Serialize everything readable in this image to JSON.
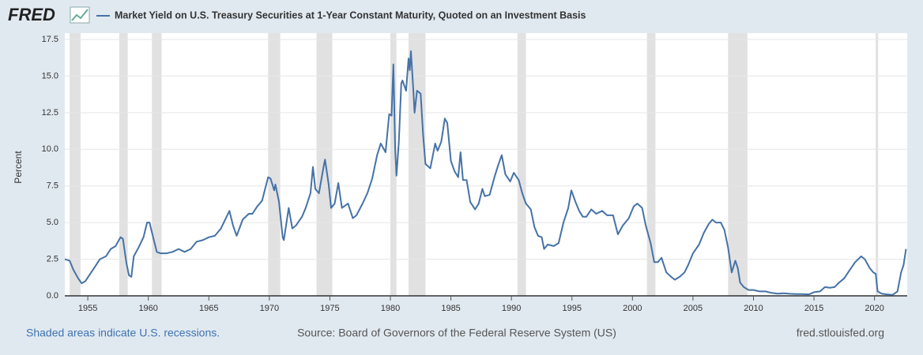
{
  "chart_data": {
    "type": "line",
    "logo": "FRED",
    "y_label": "Percent",
    "note": "Shaded areas indicate U.S. recessions.",
    "source": "Source: Board of Governors of the Federal Reserve System (US)",
    "site": "fred.stlouisfed.org",
    "xlim": [
      1953.1,
      2022.7
    ],
    "xticks": [
      1955,
      1960,
      1965,
      1970,
      1975,
      1980,
      1985,
      1990,
      1995,
      2000,
      2005,
      2010,
      2015,
      2020
    ],
    "ylim": [
      0,
      17.5
    ],
    "yticks": [
      {
        "value": 0,
        "label": "0.0"
      },
      2.5,
      {
        "value": 5,
        "label": "5.0"
      },
      7.5,
      {
        "value": 10,
        "label": "10.0"
      },
      12.5,
      {
        "value": 15,
        "label": "15.0"
      },
      17.5
    ],
    "grid": true,
    "recession_color": "#e1e1e1",
    "recessions": [
      [
        1953.5,
        1954.4
      ],
      [
        1957.6,
        1958.3
      ],
      [
        1960.3,
        1961.1
      ],
      [
        1969.9,
        1970.9
      ],
      [
        1973.9,
        1975.2
      ],
      [
        1980.0,
        1980.5
      ],
      [
        1981.5,
        1982.9
      ],
      [
        1990.5,
        1991.2
      ],
      [
        2001.2,
        2001.9
      ],
      [
        2007.9,
        2009.5
      ],
      [
        2020.1,
        2020.3
      ]
    ],
    "x": [
      1953.1,
      1953.5,
      1953.8,
      1954.2,
      1954.5,
      1954.8,
      1955.2,
      1955.6,
      1956,
      1956.5,
      1956.9,
      1957.3,
      1957.7,
      1957.9,
      1958.2,
      1958.4,
      1958.6,
      1958.8,
      1959.2,
      1959.6,
      1959.9,
      1960.1,
      1960.4,
      1960.7,
      1961,
      1961.5,
      1962,
      1962.5,
      1963,
      1963.5,
      1964,
      1964.5,
      1965,
      1965.5,
      1966,
      1966.7,
      1967,
      1967.3,
      1967.8,
      1968.3,
      1968.6,
      1969,
      1969.4,
      1969.9,
      1970.1,
      1970.4,
      1970.5,
      1970.8,
      1971.1,
      1971.2,
      1971.6,
      1971.9,
      1972.2,
      1972.7,
      1973,
      1973.4,
      1973.6,
      1973.8,
      1974.1,
      1974.5,
      1974.6,
      1974.9,
      1975.1,
      1975.4,
      1975.7,
      1976,
      1976.5,
      1976.9,
      1977.2,
      1977.7,
      1978.1,
      1978.5,
      1978.9,
      1979.2,
      1979.6,
      1979.9,
      1980.1,
      1980.25,
      1980.4,
      1980.5,
      1980.7,
      1980.9,
      1981,
      1981.3,
      1981.5,
      1981.6,
      1981.7,
      1981.9,
      1982,
      1982.2,
      1982.5,
      1982.7,
      1982.9,
      1983.3,
      1983.7,
      1983.9,
      1984.2,
      1984.5,
      1984.7,
      1985,
      1985.3,
      1985.6,
      1985.8,
      1986,
      1986.3,
      1986.6,
      1987,
      1987.3,
      1987.6,
      1987.8,
      1988.2,
      1988.6,
      1988.9,
      1989.2,
      1989.5,
      1989.9,
      1990.2,
      1990.6,
      1990.9,
      1991.2,
      1991.6,
      1991.9,
      1992.2,
      1992.5,
      1992.7,
      1993,
      1993.5,
      1993.9,
      1994.3,
      1994.7,
      1994.95,
      1995.3,
      1995.6,
      1995.9,
      1996.2,
      1996.6,
      1997,
      1997.5,
      1997.9,
      1998.4,
      1998.8,
      1999.2,
      1999.7,
      2000.1,
      2000.4,
      2000.8,
      2001.1,
      2001.5,
      2001.8,
      2002.1,
      2002.4,
      2002.8,
      2003.2,
      2003.5,
      2003.9,
      2004.3,
      2004.6,
      2005,
      2005.5,
      2005.9,
      2006.3,
      2006.6,
      2006.9,
      2007.3,
      2007.6,
      2007.9,
      2008.2,
      2008.5,
      2008.7,
      2008.9,
      2009.2,
      2009.6,
      2010,
      2010.5,
      2011,
      2011.5,
      2012,
      2012.5,
      2013,
      2013.5,
      2014,
      2014.6,
      2015,
      2015.5,
      2015.9,
      2016.3,
      2016.7,
      2017,
      2017.5,
      2017.9,
      2018.4,
      2018.9,
      2019.2,
      2019.6,
      2019.9,
      2020.1,
      2020.25,
      2020.6,
      2021,
      2021.5,
      2021.9,
      2022.2,
      2022.4,
      2022.6
    ],
    "series": [
      {
        "name": "Market Yield on U.S. Treasury Securities at 1-Year Constant Maturity, Quoted on an Investment Basis",
        "color": "#4572a7",
        "values": [
          2.5,
          2.4,
          1.8,
          1.2,
          0.85,
          1.0,
          1.5,
          2.0,
          2.5,
          2.7,
          3.2,
          3.4,
          4.0,
          3.9,
          2.2,
          1.4,
          1.3,
          2.7,
          3.3,
          4.0,
          5.0,
          5.0,
          4.0,
          3.0,
          2.9,
          2.9,
          3.0,
          3.2,
          3.0,
          3.2,
          3.7,
          3.8,
          4.0,
          4.1,
          4.6,
          5.8,
          4.8,
          4.1,
          5.2,
          5.6,
          5.6,
          6.1,
          6.5,
          8.1,
          8.0,
          7.2,
          7.6,
          6.4,
          4.0,
          3.8,
          6.0,
          4.6,
          4.8,
          5.4,
          6.0,
          7.0,
          8.8,
          7.3,
          7.0,
          8.9,
          9.3,
          7.6,
          6.0,
          6.3,
          7.7,
          6.0,
          6.3,
          5.3,
          5.5,
          6.3,
          7.0,
          8.0,
          9.6,
          10.4,
          9.8,
          12.4,
          12.3,
          15.8,
          10.0,
          8.2,
          10.5,
          14.5,
          14.7,
          14.0,
          16.2,
          15.4,
          16.7,
          14.0,
          12.5,
          14.0,
          13.8,
          11.0,
          9.0,
          8.7,
          10.4,
          9.9,
          10.5,
          12.1,
          11.8,
          9.2,
          8.5,
          8.1,
          9.8,
          7.9,
          7.9,
          6.4,
          5.9,
          6.3,
          7.3,
          6.8,
          6.9,
          8.1,
          8.9,
          9.6,
          8.3,
          7.8,
          8.4,
          7.9,
          7.0,
          6.3,
          5.9,
          4.7,
          4.1,
          4.0,
          3.2,
          3.5,
          3.4,
          3.6,
          5.0,
          6.0,
          7.2,
          6.4,
          5.8,
          5.4,
          5.4,
          5.9,
          5.6,
          5.8,
          5.5,
          5.5,
          4.2,
          4.8,
          5.3,
          6.1,
          6.3,
          6.0,
          4.8,
          3.6,
          2.3,
          2.3,
          2.6,
          1.6,
          1.3,
          1.1,
          1.3,
          1.6,
          2.1,
          2.9,
          3.5,
          4.3,
          4.9,
          5.2,
          5.0,
          5.0,
          4.5,
          3.3,
          1.6,
          2.4,
          1.9,
          0.9,
          0.6,
          0.4,
          0.4,
          0.3,
          0.3,
          0.2,
          0.15,
          0.18,
          0.14,
          0.12,
          0.12,
          0.1,
          0.25,
          0.3,
          0.6,
          0.55,
          0.6,
          0.85,
          1.2,
          1.7,
          2.3,
          2.7,
          2.5,
          1.9,
          1.6,
          1.5,
          0.3,
          0.15,
          0.1,
          0.07,
          0.3,
          1.6,
          2.1,
          3.2
        ]
      }
    ]
  }
}
